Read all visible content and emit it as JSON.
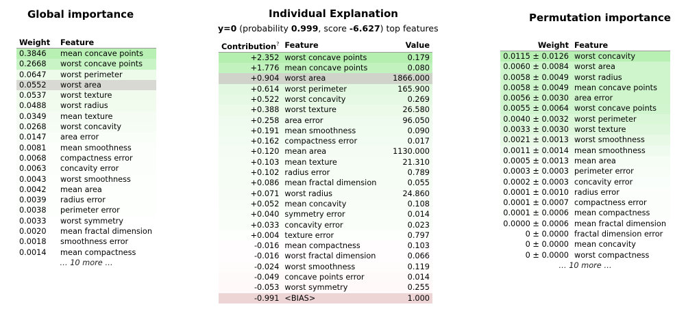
{
  "global": {
    "title": "Global importance",
    "headers": [
      "Weight",
      "Feature"
    ],
    "rows": [
      {
        "weight": "0.3846",
        "feature": "mean concave points",
        "bg": "#b8f0b4"
      },
      {
        "weight": "0.2668",
        "feature": "worst concave points",
        "bg": "#c9f4c5"
      },
      {
        "weight": "0.0647",
        "feature": "worst perimeter",
        "bg": "#ecfbea"
      },
      {
        "weight": "0.0552",
        "feature": "worst area",
        "bg": "#d9d9d3"
      },
      {
        "weight": "0.0537",
        "feature": "worst texture",
        "bg": "#f0fbee"
      },
      {
        "weight": "0.0488",
        "feature": "worst radius",
        "bg": "#f1fcef"
      },
      {
        "weight": "0.0349",
        "feature": "mean texture",
        "bg": "#f4fcf3"
      },
      {
        "weight": "0.0268",
        "feature": "worst concavity",
        "bg": "#f6fdf5"
      },
      {
        "weight": "0.0147",
        "feature": "area error",
        "bg": "#f9fef8"
      },
      {
        "weight": "0.0081",
        "feature": "mean smoothness",
        "bg": "#fbfefb"
      },
      {
        "weight": "0.0068",
        "feature": "compactness error",
        "bg": "#fcfefc"
      },
      {
        "weight": "0.0063",
        "feature": "concavity error",
        "bg": "#fcfefc"
      },
      {
        "weight": "0.0043",
        "feature": "worst smoothness",
        "bg": "#fdfffd"
      },
      {
        "weight": "0.0042",
        "feature": "mean area",
        "bg": "#fdfffd"
      },
      {
        "weight": "0.0039",
        "feature": "radius error",
        "bg": "#fdfffd"
      },
      {
        "weight": "0.0038",
        "feature": "perimeter error",
        "bg": "#fdfffd"
      },
      {
        "weight": "0.0033",
        "feature": "worst symmetry",
        "bg": "#fefffe"
      },
      {
        "weight": "0.0020",
        "feature": "mean fractal dimension",
        "bg": "#fefffe"
      },
      {
        "weight": "0.0018",
        "feature": "smoothness error",
        "bg": "#fefffe"
      },
      {
        "weight": "0.0014",
        "feature": "mean compactness",
        "bg": "#ffffff"
      }
    ],
    "more": "… 10 more …"
  },
  "individual": {
    "title": "Individual Explanation",
    "subtitle": {
      "label": "y=0",
      "prob_prefix": " (probability ",
      "probability": "0.999",
      "score_prefix": ", score ",
      "score": "-6.627",
      "suffix": ") top features"
    },
    "headers": [
      "Contribution",
      "Feature",
      "Value"
    ],
    "header_sup": "?",
    "rows": [
      {
        "contribution": "+2.352",
        "feature": "worst concave points",
        "value": "0.179",
        "bg": "#b4efb0"
      },
      {
        "contribution": "+1.776",
        "feature": "mean concave points",
        "value": "0.080",
        "bg": "#c2f2be"
      },
      {
        "contribution": "+0.904",
        "feature": "worst area",
        "value": "1866.000",
        "bg": "#cfd3c9"
      },
      {
        "contribution": "+0.614",
        "feature": "worst perimeter",
        "value": "165.900",
        "bg": "#e3f8e1"
      },
      {
        "contribution": "+0.522",
        "feature": "worst concavity",
        "value": "0.269",
        "bg": "#e6f9e4"
      },
      {
        "contribution": "+0.388",
        "feature": "worst texture",
        "value": "26.580",
        "bg": "#ebfae9"
      },
      {
        "contribution": "+0.258",
        "feature": "area error",
        "value": "96.050",
        "bg": "#effbee"
      },
      {
        "contribution": "+0.191",
        "feature": "mean smoothness",
        "value": "0.090",
        "bg": "#f1fcf0"
      },
      {
        "contribution": "+0.162",
        "feature": "compactness error",
        "value": "0.017",
        "bg": "#f3fcf2"
      },
      {
        "contribution": "+0.120",
        "feature": "mean area",
        "value": "1130.000",
        "bg": "#f4fcf3"
      },
      {
        "contribution": "+0.103",
        "feature": "mean texture",
        "value": "21.310",
        "bg": "#f5fdf4"
      },
      {
        "contribution": "+0.102",
        "feature": "radius error",
        "value": "0.789",
        "bg": "#f5fdf4"
      },
      {
        "contribution": "+0.086",
        "feature": "mean fractal dimension",
        "value": "0.055",
        "bg": "#f6fdf5"
      },
      {
        "contribution": "+0.071",
        "feature": "worst radius",
        "value": "24.860",
        "bg": "#f7fdf6"
      },
      {
        "contribution": "+0.052",
        "feature": "mean concavity",
        "value": "0.108",
        "bg": "#f8fdf7"
      },
      {
        "contribution": "+0.040",
        "feature": "symmetry error",
        "value": "0.014",
        "bg": "#f9fef8"
      },
      {
        "contribution": "+0.033",
        "feature": "concavity error",
        "value": "0.023",
        "bg": "#fafef9"
      },
      {
        "contribution": "+0.004",
        "feature": "texture error",
        "value": "0.797",
        "bg": "#fdfffd"
      },
      {
        "contribution": "-0.016",
        "feature": "mean compactness",
        "value": "0.103",
        "bg": "#fffdfd"
      },
      {
        "contribution": "-0.016",
        "feature": "worst fractal dimension",
        "value": "0.066",
        "bg": "#fffdfd"
      },
      {
        "contribution": "-0.024",
        "feature": "worst smoothness",
        "value": "0.119",
        "bg": "#fffcfc"
      },
      {
        "contribution": "-0.049",
        "feature": "concave points error",
        "value": "0.014",
        "bg": "#fffafa"
      },
      {
        "contribution": "-0.053",
        "feature": "worst symmetry",
        "value": "0.255",
        "bg": "#fff9f9"
      },
      {
        "contribution": "-0.991",
        "feature": "<BIAS>",
        "value": "1.000",
        "bg": "#eed5d5"
      }
    ]
  },
  "permutation": {
    "title": "Permutation importance",
    "headers": [
      "Weight",
      "Feature"
    ],
    "rows": [
      {
        "weight": "0.0115 ± 0.0126",
        "feature": "worst concavity",
        "bg": "#b8f0b4"
      },
      {
        "weight": "0.0060 ± 0.0084",
        "feature": "worst area",
        "bg": "#cef5cb"
      },
      {
        "weight": "0.0058 ± 0.0049",
        "feature": "worst radius",
        "bg": "#cff5cc"
      },
      {
        "weight": "0.0058 ± 0.0049",
        "feature": "mean concave points",
        "bg": "#cff5cc"
      },
      {
        "weight": "0.0056 ± 0.0030",
        "feature": "area error",
        "bg": "#d0f5cd"
      },
      {
        "weight": "0.0055 ± 0.0064",
        "feature": "worst concave points",
        "bg": "#d1f5ce"
      },
      {
        "weight": "0.0040 ± 0.0032",
        "feature": "worst perimeter",
        "bg": "#daf7d8"
      },
      {
        "weight": "0.0033 ± 0.0030",
        "feature": "worst texture",
        "bg": "#dff8dd"
      },
      {
        "weight": "0.0021 ± 0.0013",
        "feature": "worst smoothness",
        "bg": "#e8f9e6"
      },
      {
        "weight": "0.0011 ± 0.0014",
        "feature": "mean smoothness",
        "bg": "#f0fbef"
      },
      {
        "weight": "0.0005 ± 0.0013",
        "feature": "mean area",
        "bg": "#f6fdf5"
      },
      {
        "weight": "0.0003 ± 0.0003",
        "feature": "perimeter error",
        "bg": "#f8fdf8"
      },
      {
        "weight": "0.0002 ± 0.0003",
        "feature": "concavity error",
        "bg": "#fafefa"
      },
      {
        "weight": "0.0001 ± 0.0010",
        "feature": "radius error",
        "bg": "#fbfefb"
      },
      {
        "weight": "0.0001 ± 0.0007",
        "feature": "compactness error",
        "bg": "#fbfefb"
      },
      {
        "weight": "0.0001 ± 0.0006",
        "feature": "mean compactness",
        "bg": "#fcfefc"
      },
      {
        "weight": "0.0000 ± 0.0006",
        "feature": "mean fractal dimension",
        "bg": "#fefffe"
      },
      {
        "weight": "0 ± 0.0000",
        "feature": "fractal dimension error",
        "bg": "#ffffff"
      },
      {
        "weight": "0 ± 0.0000",
        "feature": "mean concavity",
        "bg": "#ffffff"
      },
      {
        "weight": "0 ± 0.0000",
        "feature": "worst compactness",
        "bg": "#ffffff"
      }
    ],
    "more": "… 10 more …"
  }
}
